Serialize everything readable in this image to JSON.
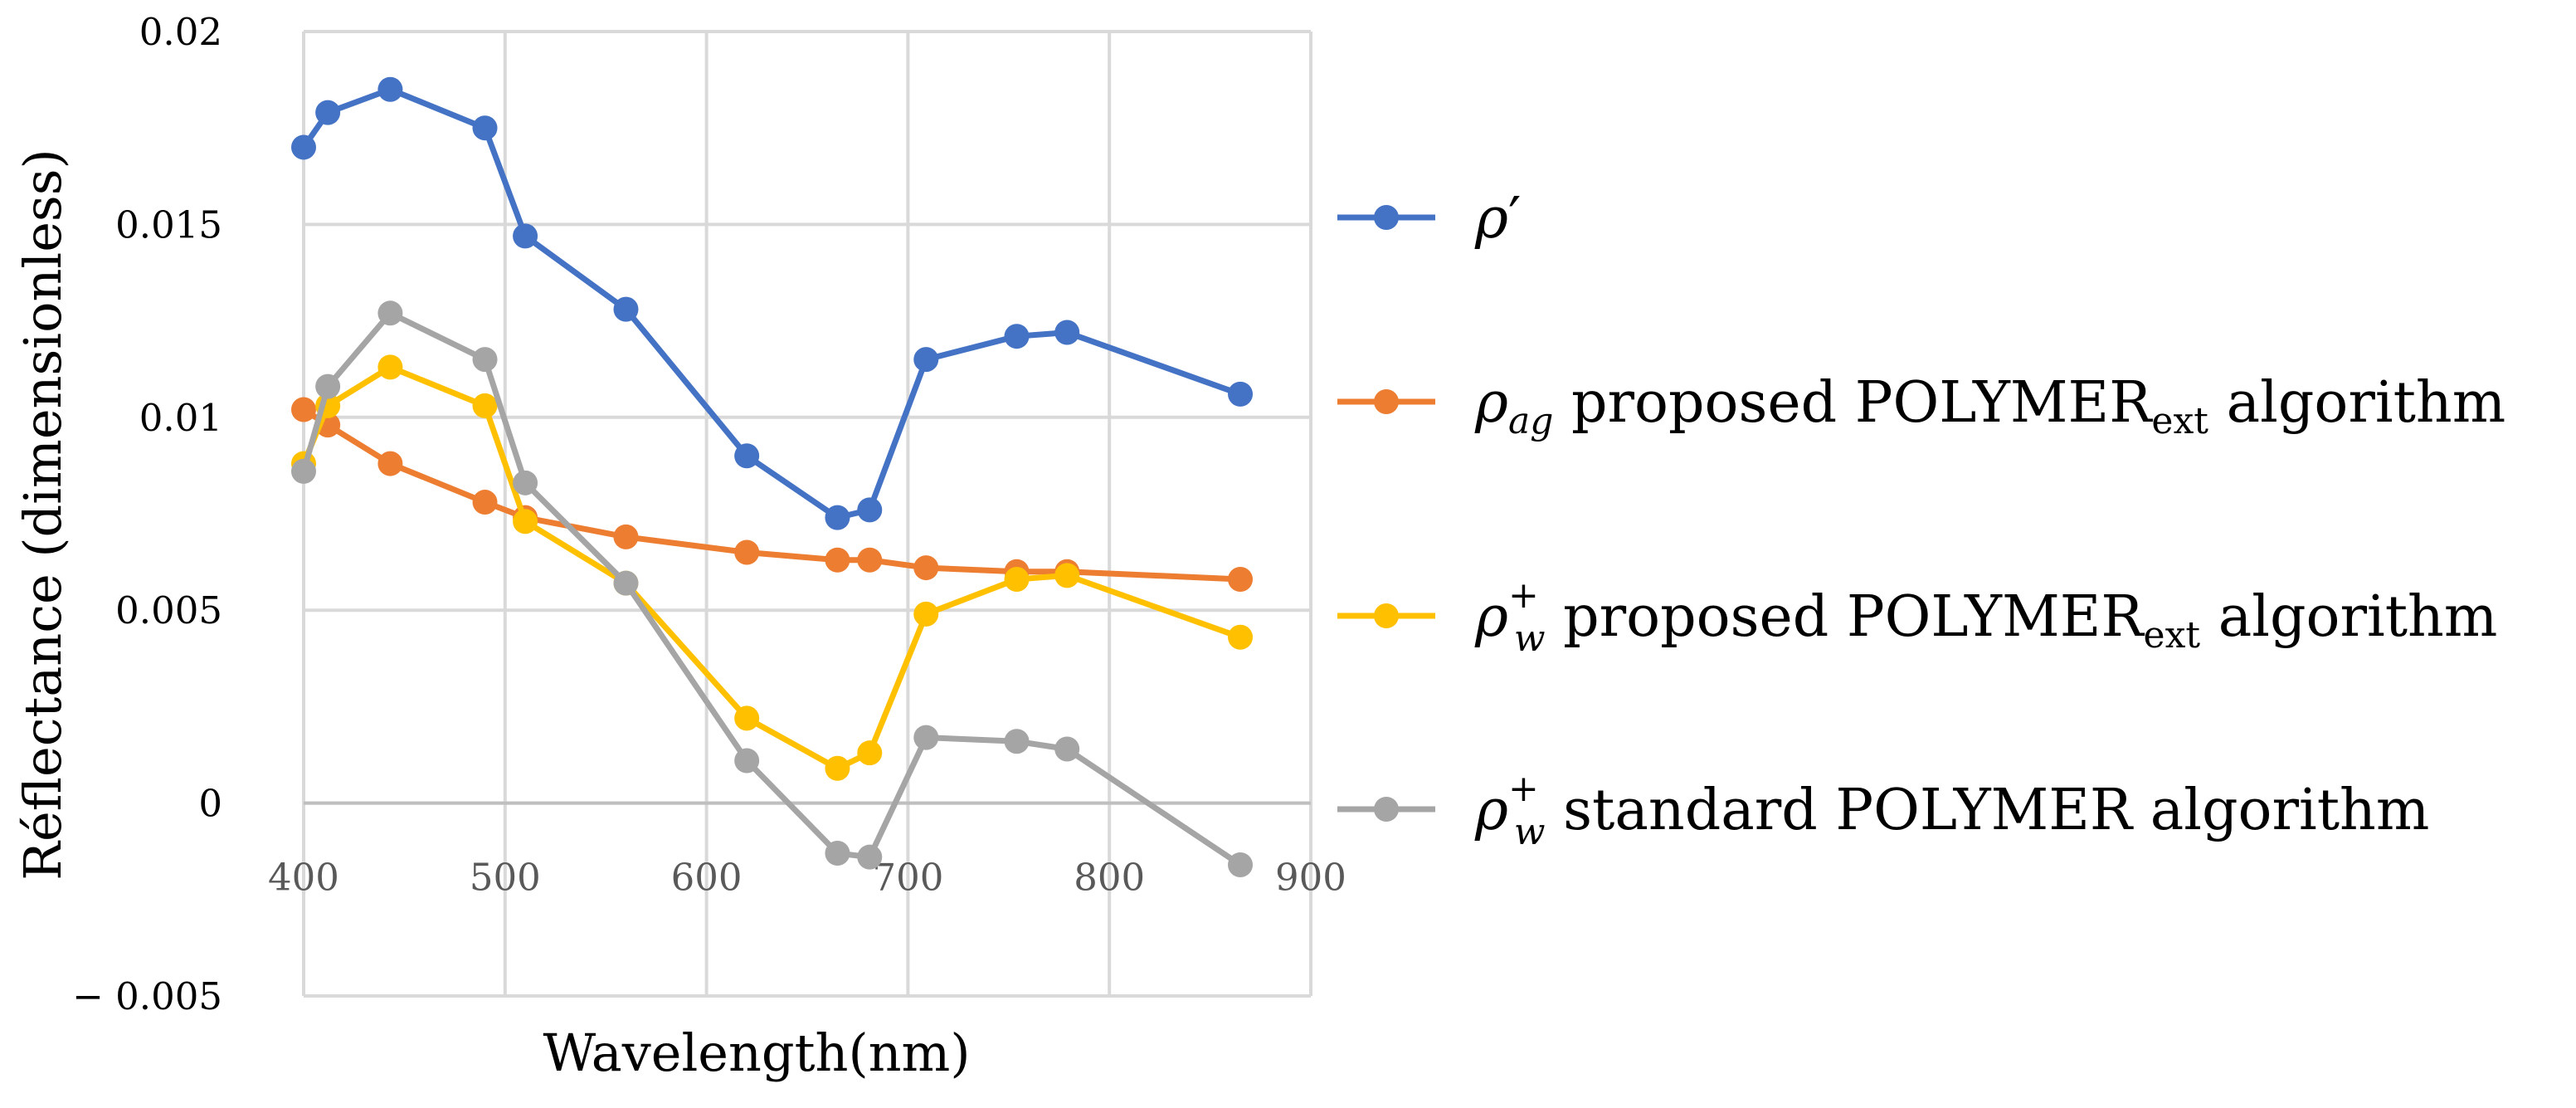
{
  "chart_data": {
    "type": "line",
    "title": "",
    "xlabel": "Wavelength(nm)",
    "ylabel": "Réflectance (dimensionless)",
    "xlim": [
      400,
      900
    ],
    "ylim": [
      -0.005,
      0.02
    ],
    "x_ticks": [
      400,
      500,
      600,
      700,
      800,
      900
    ],
    "y_ticks": [
      0.02,
      0.015,
      0.01,
      0.005,
      0,
      -0.005
    ],
    "y_tick_labels": [
      "0.02",
      "0.015",
      "0.01",
      "0.005",
      "0",
      "− 0.005"
    ],
    "grid": true,
    "legend_position": "right",
    "x": [
      400,
      412,
      443,
      490,
      510,
      560,
      620,
      665,
      681,
      709,
      754,
      779,
      865
    ],
    "series": [
      {
        "name": "ρ′",
        "symbol": "ρ",
        "symbol_sub": "",
        "symbol_sup": "′",
        "text": "",
        "text_sub": "",
        "text_after": "",
        "color": "#4472C4",
        "values": [
          0.017,
          0.0179,
          0.0185,
          0.0175,
          0.0147,
          0.0128,
          0.009,
          0.0074,
          0.0076,
          0.0115,
          0.0121,
          0.0122,
          0.0106
        ]
      },
      {
        "name": "ρag proposed POLYMERext algorithm",
        "symbol": "ρ",
        "symbol_sub": "ag",
        "symbol_sup": "",
        "text": " proposed POLYMER",
        "text_sub": "ext",
        "text_after": " algorithm",
        "color": "#ED7D31",
        "values": [
          0.0102,
          0.0098,
          0.0088,
          0.0078,
          0.0074,
          0.0069,
          0.0065,
          0.0063,
          0.0063,
          0.0061,
          0.006,
          0.006,
          0.0058
        ]
      },
      {
        "name": "ρw+ proposed POLYMERext algorithm",
        "symbol": "ρ",
        "symbol_sub": "w",
        "symbol_sup": "+",
        "text": " proposed POLYMER",
        "text_sub": "ext",
        "text_after": " algorithm",
        "color": "#FFC000",
        "values": [
          0.0088,
          0.0103,
          0.0113,
          0.0103,
          0.0073,
          0.0057,
          0.0022,
          0.0009,
          0.0013,
          0.0049,
          0.0058,
          0.0059,
          0.0043
        ]
      },
      {
        "name": "ρw+ standard POLYMER algorithm",
        "symbol": "ρ",
        "symbol_sub": "w",
        "symbol_sup": "+",
        "text": " standard POLYMER algorithm",
        "text_sub": "",
        "text_after": "",
        "color": "#A5A5A5",
        "values": [
          0.0086,
          0.0108,
          0.0127,
          0.0115,
          0.0083,
          0.0057,
          0.0011,
          -0.0013,
          -0.0014,
          0.0017,
          0.0016,
          0.0014,
          -0.0016
        ]
      }
    ]
  }
}
